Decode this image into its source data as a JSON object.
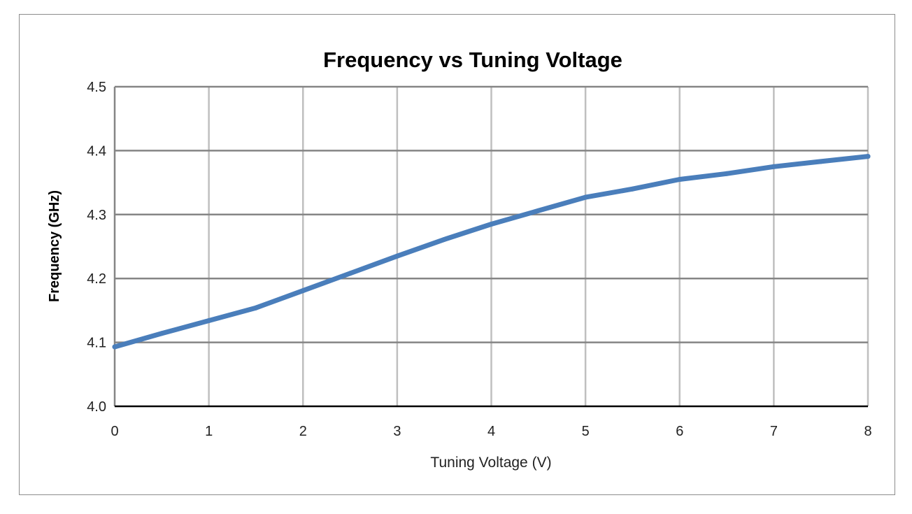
{
  "chart_data": {
    "type": "line",
    "title": "Frequency vs Tuning Voltage",
    "xlabel": "Tuning Voltage (V)",
    "ylabel": "Frequency (GHz)",
    "xlim": [
      0,
      8
    ],
    "ylim": [
      4.0,
      4.5
    ],
    "xticks": [
      "0",
      "1",
      "2",
      "3",
      "4",
      "5",
      "6",
      "7",
      "8"
    ],
    "yticks": [
      "4.0",
      "4.1",
      "4.2",
      "4.3",
      "4.4",
      "4.5"
    ],
    "grid": true,
    "legend": "none",
    "series": [
      {
        "color": "#4a7ebb",
        "x": [
          0,
          0.5,
          1,
          1.5,
          2,
          2.5,
          3,
          3.5,
          4,
          4.5,
          5,
          5.5,
          6,
          6.5,
          7,
          7.5,
          8
        ],
        "y": [
          4.093,
          4.114,
          4.134,
          4.154,
          4.181,
          4.208,
          4.235,
          4.261,
          4.285,
          4.306,
          4.327,
          4.34,
          4.355,
          4.364,
          4.375,
          4.383,
          4.391
        ]
      }
    ]
  }
}
